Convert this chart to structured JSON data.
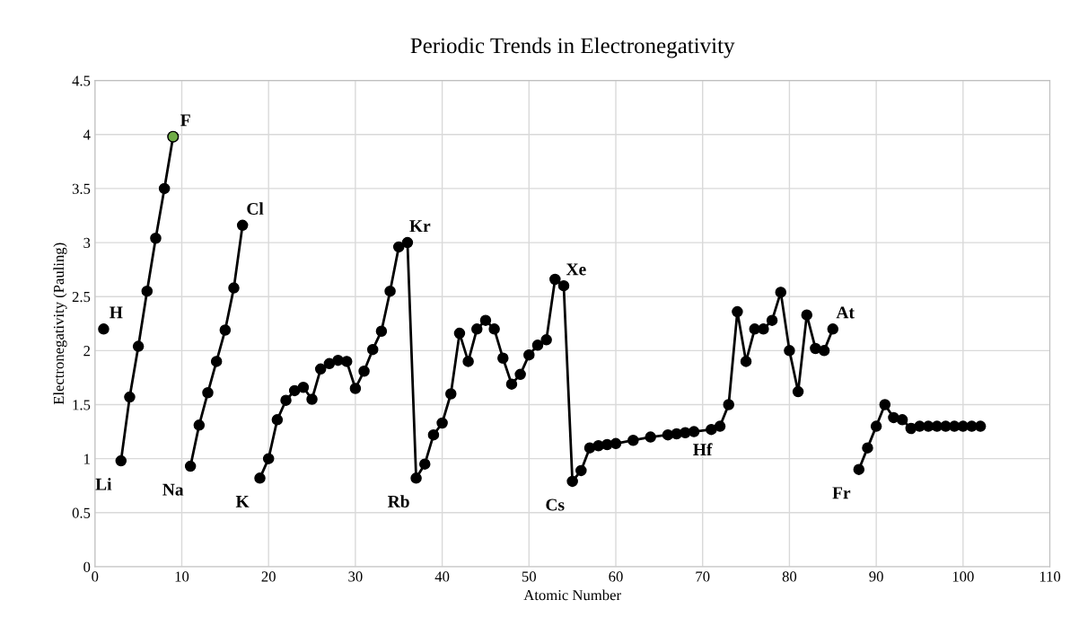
{
  "chart_data": {
    "type": "line",
    "title": "Periodic Trends in Electronegativity",
    "xlabel": "Atomic Number",
    "ylabel": "Electronegativity (Pauling)",
    "series": [
      {
        "color": "#000000",
        "x": [
          1,
          2,
          3,
          4,
          5,
          6,
          7,
          8,
          9,
          10,
          11,
          12,
          13,
          14,
          15,
          16,
          17,
          18,
          19,
          20,
          21,
          22,
          23,
          24,
          25,
          26,
          27,
          28,
          29,
          30,
          31,
          32,
          33,
          34,
          35,
          36,
          37,
          38,
          39,
          40,
          41,
          42,
          43,
          44,
          45,
          46,
          47,
          48,
          49,
          50,
          51,
          52,
          53,
          54,
          55,
          56,
          57,
          58,
          59,
          60,
          62,
          64,
          66,
          67,
          68,
          69,
          71,
          72,
          73,
          74,
          75,
          76,
          77,
          78,
          79,
          80,
          81,
          82,
          83,
          84,
          85,
          87,
          88,
          89,
          90,
          91,
          92,
          93,
          94,
          95,
          96,
          97,
          98,
          99,
          100,
          101,
          102
        ],
        "values": [
          2.2,
          null,
          0.98,
          1.57,
          2.04,
          2.55,
          3.04,
          3.5,
          3.98,
          null,
          0.93,
          1.31,
          1.61,
          1.9,
          2.19,
          2.58,
          3.16,
          null,
          0.82,
          1.0,
          1.36,
          1.54,
          1.63,
          1.66,
          1.55,
          1.83,
          1.88,
          1.91,
          1.9,
          1.65,
          1.81,
          2.01,
          2.18,
          2.55,
          2.96,
          3.0,
          0.82,
          0.95,
          1.22,
          1.33,
          1.6,
          2.16,
          1.9,
          2.2,
          2.28,
          2.2,
          1.93,
          1.69,
          1.78,
          1.96,
          2.05,
          2.1,
          2.66,
          2.6,
          0.79,
          0.89,
          1.1,
          1.12,
          1.13,
          1.14,
          1.17,
          1.2,
          1.22,
          1.23,
          1.24,
          1.25,
          1.27,
          1.3,
          1.5,
          2.36,
          1.9,
          2.2,
          2.2,
          2.28,
          2.54,
          2.0,
          1.62,
          2.33,
          2.02,
          2.0,
          2.2,
          null,
          0.9,
          1.1,
          1.3,
          1.5,
          1.38,
          1.36,
          1.28,
          1.3,
          1.3,
          1.3,
          1.3,
          1.3,
          1.3,
          1.3,
          1.3
        ]
      },
      {
        "type": "scatter",
        "color": "#70ad47",
        "x": [
          9
        ],
        "values": [
          3.98
        ]
      }
    ],
    "annotations": [
      {
        "text": "H",
        "x": 1,
        "y": 2.2
      },
      {
        "text": "Li",
        "x": 3,
        "y": 0.98
      },
      {
        "text": "F",
        "x": 9,
        "y": 3.98
      },
      {
        "text": "Na",
        "x": 11,
        "y": 0.93
      },
      {
        "text": "Cl",
        "x": 17,
        "y": 3.16
      },
      {
        "text": "K",
        "x": 19,
        "y": 0.82
      },
      {
        "text": "Kr",
        "x": 36,
        "y": 3.0
      },
      {
        "text": "Rb",
        "x": 37,
        "y": 0.82
      },
      {
        "text": "Xe",
        "x": 54,
        "y": 2.6
      },
      {
        "text": "Cs",
        "x": 55,
        "y": 0.79
      },
      {
        "text": "Hf",
        "x": 72,
        "y": 1.3
      },
      {
        "text": "At",
        "x": 85,
        "y": 2.2
      },
      {
        "text": "Fr",
        "x": 88,
        "y": 0.9
      }
    ],
    "xlim": [
      0,
      110
    ],
    "xticks": [
      0,
      10,
      20,
      30,
      40,
      50,
      60,
      70,
      80,
      90,
      100,
      110
    ],
    "ylim": [
      0,
      4.5
    ],
    "yticks": [
      0,
      0.5,
      1,
      1.5,
      2,
      2.5,
      3,
      3.5,
      4,
      4.5
    ],
    "grid": true,
    "marker": "circle",
    "line_style": "solid",
    "legend": false
  }
}
